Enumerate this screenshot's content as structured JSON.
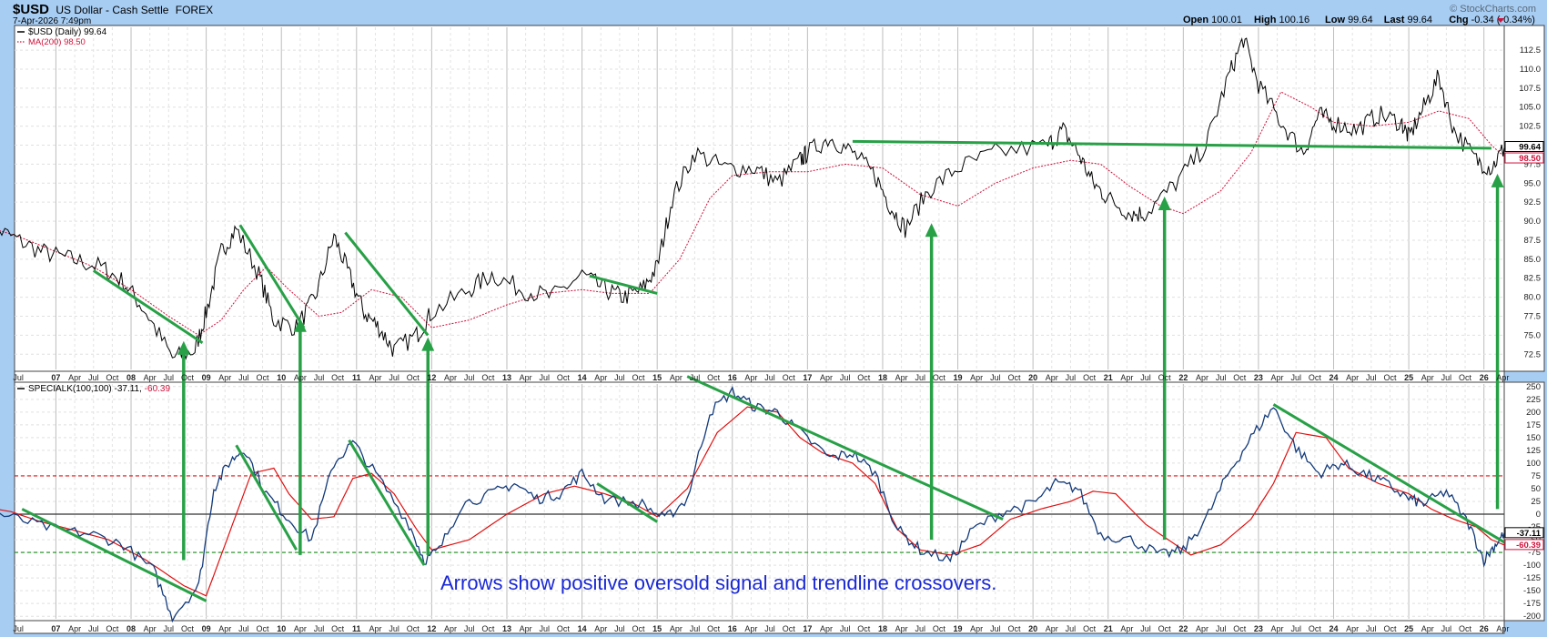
{
  "header": {
    "symbol": "$USD",
    "name": "US Dollar - Cash Settle",
    "exchange": "FOREX",
    "date": "7-Apr-2026 7:49pm",
    "copyright": "© StockCharts.com",
    "quote": [
      {
        "label": "Open",
        "value": "100.01"
      },
      {
        "label": "High",
        "value": "100.16"
      },
      {
        "label": "Low",
        "value": "99.64"
      },
      {
        "label": "Last",
        "value": "99.64"
      },
      {
        "label": "Chg",
        "value": "-0.34 (-0.34%)"
      }
    ]
  },
  "chart_data": [
    {
      "type": "line",
      "panel": "price",
      "legend": [
        {
          "label": "$USD (Daily) 99.64",
          "color": "#000000"
        },
        {
          "label": "MA(200) 98.50",
          "color": "#d0103a"
        }
      ],
      "series": [
        {
          "name": "$USD (Daily)",
          "color": "#000000",
          "x": [
            2006.0,
            2006.4,
            2006.8,
            2007.2,
            2007.6,
            2007.9,
            2008.2,
            2008.55,
            2008.85,
            2009.0,
            2009.2,
            2009.4,
            2009.7,
            2009.9,
            2010.2,
            2010.45,
            2010.7,
            2010.9,
            2011.1,
            2011.3,
            2011.5,
            2011.8,
            2012.0,
            2012.5,
            2012.8,
            2013.2,
            2013.6,
            2014.0,
            2014.3,
            2014.55,
            2014.8,
            2015.0,
            2015.2,
            2015.5,
            2015.9,
            2016.3,
            2016.6,
            2016.9,
            2017.0,
            2017.3,
            2017.6,
            2017.9,
            2018.1,
            2018.3,
            2018.6,
            2019.0,
            2019.5,
            2020.2,
            2020.4,
            2020.6,
            2020.8,
            2021.0,
            2021.3,
            2021.5,
            2021.9,
            2022.3,
            2022.6,
            2022.8,
            2023.0,
            2023.3,
            2023.6,
            2023.8,
            2024.0,
            2024.3,
            2024.6,
            2024.9,
            2025.0,
            2025.2,
            2025.4,
            2025.6,
            2025.9,
            2026.1,
            2026.27
          ],
          "values": [
            90,
            88,
            86,
            85,
            84,
            82,
            78,
            72,
            73,
            78,
            86,
            89,
            83,
            77,
            76,
            80,
            88,
            83,
            78,
            76,
            73,
            75,
            78,
            81,
            83,
            81,
            80,
            83,
            81,
            80,
            81,
            84,
            93,
            99,
            97,
            97,
            95,
            98,
            99,
            101,
            99,
            96,
            92,
            89,
            94,
            97,
            99,
            100,
            102,
            99,
            95,
            93,
            91,
            91,
            95,
            100,
            109,
            114,
            108,
            103,
            99,
            104,
            103,
            102,
            104,
            103,
            101,
            105,
            109,
            102,
            98,
            97,
            99.64
          ]
        },
        {
          "name": "MA(200)",
          "color": "#d0103a",
          "x": [
            2006.0,
            2006.5,
            2007.0,
            2007.5,
            2008.0,
            2008.5,
            2008.9,
            2009.2,
            2009.5,
            2009.8,
            2010.1,
            2010.5,
            2010.8,
            2011.2,
            2011.6,
            2012.0,
            2012.5,
            2013.0,
            2013.5,
            2014.0,
            2014.4,
            2014.9,
            2015.3,
            2015.7,
            2016.0,
            2016.5,
            2017.0,
            2017.5,
            2018.0,
            2018.5,
            2019.0,
            2019.5,
            2020.0,
            2020.5,
            2020.9,
            2021.3,
            2021.7,
            2022.0,
            2022.5,
            2022.9,
            2023.3,
            2023.7,
            2024.0,
            2024.5,
            2025.0,
            2025.4,
            2025.8,
            2026.1,
            2026.27
          ],
          "values": [
            89.5,
            88,
            86,
            84,
            81,
            77.5,
            75,
            77,
            81,
            84,
            81,
            77.5,
            78,
            81,
            80,
            76,
            77,
            79,
            80.5,
            81,
            80.5,
            80.5,
            85,
            93,
            96,
            96.5,
            96.5,
            97.5,
            97,
            93.5,
            92,
            95,
            97,
            98,
            97.5,
            94.5,
            92,
            91,
            94,
            99,
            107,
            105,
            103,
            102.5,
            103,
            104.5,
            103.5,
            100,
            98.5
          ]
        }
      ],
      "yticks": [
        72.5,
        75,
        77.5,
        80,
        82.5,
        85,
        87.5,
        90,
        92.5,
        95,
        97.5,
        100,
        102.5,
        105,
        107.5,
        110,
        112.5
      ],
      "ylim": [
        70.5,
        115.5
      ],
      "last_value_badges": [
        {
          "label": "99.64",
          "color": "#000000"
        },
        {
          "label": "98.50",
          "color": "#d0103a"
        }
      ],
      "trendlines": [
        {
          "x1": 2007.5,
          "y1": 83.5,
          "x2": 2008.95,
          "y2": 74
        },
        {
          "x1": 2009.45,
          "y1": 89.5,
          "x2": 2010.3,
          "y2": 76
        },
        {
          "x1": 2010.85,
          "y1": 88.5,
          "x2": 2011.95,
          "y2": 75
        },
        {
          "x1": 2014.1,
          "y1": 82.8,
          "x2": 2015.0,
          "y2": 80.5
        },
        {
          "x1": 2017.6,
          "y1": 100.5,
          "x2": 2026.1,
          "y2": 99.6
        }
      ]
    },
    {
      "type": "line",
      "panel": "indicator",
      "legend": [
        {
          "label": "SPECIALK(100,100)",
          "color": "#000000"
        },
        {
          "label": "-37.11",
          "color": "#000000"
        },
        {
          "label": "-60.39",
          "color": "#d0103a"
        }
      ],
      "series": [
        {
          "name": "SPECIALK",
          "color": "#123a7a",
          "x": [
            2006.0,
            2006.5,
            2007.0,
            2007.5,
            2007.9,
            2008.3,
            2008.55,
            2008.9,
            2009.1,
            2009.3,
            2009.5,
            2009.8,
            2010.1,
            2010.4,
            2010.7,
            2010.95,
            2011.3,
            2011.7,
            2011.9,
            2012.1,
            2012.4,
            2012.8,
            2013.1,
            2013.4,
            2013.7,
            2014.0,
            2014.3,
            2014.8,
            2015.1,
            2015.4,
            2015.7,
            2016.0,
            2016.3,
            2016.6,
            2016.9,
            2017.3,
            2017.6,
            2017.9,
            2018.2,
            2018.5,
            2018.9,
            2019.2,
            2019.6,
            2020.0,
            2020.3,
            2020.6,
            2020.9,
            2021.3,
            2021.7,
            2022.0,
            2022.3,
            2022.6,
            2022.9,
            2023.2,
            2023.5,
            2023.8,
            2024.1,
            2024.4,
            2024.7,
            2025.0,
            2025.2,
            2025.5,
            2025.8,
            2026.0,
            2026.15,
            2026.27
          ],
          "values": [
            10,
            -10,
            -30,
            -40,
            -60,
            -110,
            -200,
            -140,
            50,
            100,
            130,
            40,
            -10,
            -50,
            100,
            140,
            70,
            -20,
            -90,
            -70,
            20,
            40,
            60,
            30,
            40,
            80,
            30,
            20,
            -10,
            30,
            200,
            240,
            210,
            200,
            160,
            110,
            120,
            80,
            -30,
            -70,
            -90,
            -30,
            5,
            20,
            60,
            50,
            -40,
            -50,
            -80,
            -70,
            -10,
            80,
            150,
            210,
            130,
            80,
            100,
            80,
            60,
            30,
            20,
            45,
            -20,
            -90,
            -60,
            -37.11
          ]
        },
        {
          "name": "Signal",
          "color": "#e01010",
          "x": [
            2006.0,
            2006.4,
            2006.8,
            2007.2,
            2007.7,
            2008.2,
            2008.7,
            2009.0,
            2009.3,
            2009.6,
            2009.9,
            2010.1,
            2010.4,
            2010.7,
            2010.95,
            2011.2,
            2011.5,
            2011.8,
            2012.0,
            2012.5,
            2013.0,
            2013.5,
            2013.9,
            2014.3,
            2014.7,
            2015.0,
            2015.4,
            2015.8,
            2016.2,
            2016.6,
            2016.9,
            2017.2,
            2017.6,
            2017.9,
            2018.2,
            2018.5,
            2018.9,
            2019.3,
            2019.7,
            2020.1,
            2020.5,
            2020.8,
            2021.1,
            2021.5,
            2021.8,
            2022.1,
            2022.5,
            2022.9,
            2023.2,
            2023.5,
            2023.9,
            2024.2,
            2024.6,
            2025.0,
            2025.3,
            2025.6,
            2025.9,
            2026.1,
            2026.27
          ],
          "values": [
            15,
            5,
            -15,
            -30,
            -50,
            -90,
            -140,
            -160,
            -40,
            80,
            90,
            40,
            -10,
            -5,
            70,
            80,
            40,
            -30,
            -70,
            -50,
            0,
            40,
            55,
            40,
            20,
            -5,
            50,
            160,
            210,
            200,
            150,
            120,
            100,
            60,
            -30,
            -70,
            -80,
            -60,
            -10,
            10,
            25,
            45,
            40,
            -20,
            -50,
            -80,
            -60,
            -10,
            60,
            160,
            150,
            90,
            60,
            40,
            10,
            -10,
            -25,
            -50,
            -60.39
          ]
        }
      ],
      "yticks": [
        -200,
        -175,
        -150,
        -125,
        -100,
        -75,
        -50,
        -25,
        0,
        25,
        50,
        75,
        100,
        125,
        150,
        175,
        200,
        225,
        250
      ],
      "ylim": [
        -205,
        255
      ],
      "reference_lines": [
        {
          "value": 75,
          "color": "#e01010",
          "style": "dashed"
        },
        {
          "value": 0,
          "color": "#333333",
          "style": "solid"
        },
        {
          "value": -75,
          "color": "#1a8a1a",
          "style": "dashed"
        }
      ],
      "last_value_badges": [
        {
          "label": "-37.11",
          "color": "#000000"
        },
        {
          "label": "-60.39",
          "color": "#d0103a"
        }
      ],
      "trendlines": [
        {
          "x1": 2006.55,
          "y1": 10,
          "x2": 2009.0,
          "y2": -170
        },
        {
          "x1": 2009.4,
          "y1": 135,
          "x2": 2010.2,
          "y2": -70
        },
        {
          "x1": 2010.9,
          "y1": 145,
          "x2": 2011.9,
          "y2": -100
        },
        {
          "x1": 2014.2,
          "y1": 60,
          "x2": 2015.0,
          "y2": -15
        },
        {
          "x1": 2015.4,
          "y1": 270,
          "x2": 2019.6,
          "y2": -10
        },
        {
          "x1": 2023.2,
          "y1": 215,
          "x2": 2026.27,
          "y2": -55
        }
      ],
      "annotation": "Arrows show positive oversold signal and trendline crossovers."
    }
  ],
  "x_axis": {
    "year_labels": [
      "07",
      "08",
      "09",
      "10",
      "11",
      "12",
      "13",
      "14",
      "15",
      "16",
      "17",
      "18",
      "19",
      "20",
      "21",
      "22",
      "23",
      "24",
      "25",
      "26"
    ],
    "month_labels": [
      "Apr",
      "Jul",
      "Oct"
    ],
    "start_label": "Jul",
    "end_label": "Apr",
    "xlim": [
      2006.45,
      2026.27
    ]
  },
  "signal_arrows": [
    {
      "x": 2008.7,
      "from_indicator": -90,
      "to_price": 74
    },
    {
      "x": 2010.25,
      "from_indicator": -80,
      "to_price": 77
    },
    {
      "x": 2011.95,
      "from_indicator": -80,
      "to_price": 74.5
    },
    {
      "x": 2018.65,
      "from_indicator": -50,
      "to_price": 89.5
    },
    {
      "x": 2021.75,
      "from_indicator": -50,
      "to_price": 93
    },
    {
      "x": 2026.18,
      "from_indicator": 10,
      "to_price": 96
    }
  ],
  "colors": {
    "frame_bg": "#a7cdf3",
    "plot_bg": "#ffffff",
    "grid": "#d7d7d7",
    "price": "#000000",
    "ma": "#d0103a",
    "indicator": "#123a7a",
    "signal": "#e01010",
    "trend": "#27a046",
    "annotation": "#1a28d4"
  }
}
